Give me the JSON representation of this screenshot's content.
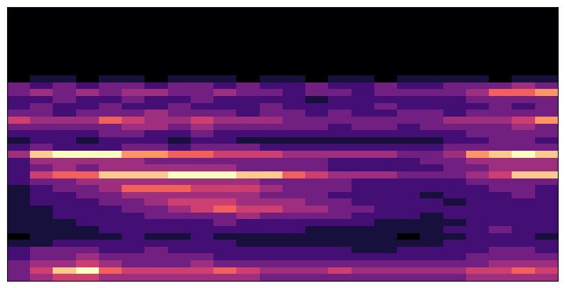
{
  "chart_data": {
    "type": "heatmap",
    "tick_labels": false,
    "color": "magma",
    "cells": [
      [
        0.0,
        0.0,
        0.0,
        0.0,
        0.0,
        0.0,
        0.0,
        0.0,
        0.0,
        0.0,
        0.0,
        0.0,
        0.0,
        0.0,
        0.0,
        0.0,
        0.0,
        0.0,
        0.0,
        0.0,
        0.0,
        0.0,
        0.0,
        0.0
      ],
      [
        0.0,
        0.0,
        0.0,
        0.0,
        0.0,
        0.0,
        0.0,
        0.0,
        0.0,
        0.0,
        0.0,
        0.0,
        0.0,
        0.0,
        0.0,
        0.0,
        0.0,
        0.0,
        0.0,
        0.0,
        0.0,
        0.0,
        0.0,
        0.0
      ],
      [
        0.0,
        0.0,
        0.0,
        0.0,
        0.0,
        0.0,
        0.0,
        0.0,
        0.0,
        0.0,
        0.0,
        0.0,
        0.0,
        0.0,
        0.0,
        0.0,
        0.0,
        0.0,
        0.0,
        0.0,
        0.0,
        0.0,
        0.0,
        0.0
      ],
      [
        0.0,
        0.0,
        0.0,
        0.0,
        0.0,
        0.0,
        0.0,
        0.0,
        0.0,
        0.0,
        0.0,
        0.0,
        0.0,
        0.0,
        0.0,
        0.0,
        0.0,
        0.0,
        0.0,
        0.0,
        0.0,
        0.0,
        0.0,
        0.0
      ],
      [
        0.0,
        0.0,
        0.0,
        0.0,
        0.0,
        0.0,
        0.0,
        0.0,
        0.0,
        0.0,
        0.0,
        0.0,
        0.0,
        0.0,
        0.0,
        0.0,
        0.0,
        0.0,
        0.0,
        0.0,
        0.0,
        0.0,
        0.0,
        0.0
      ],
      [
        0.0,
        0.0,
        0.0,
        0.0,
        0.0,
        0.0,
        0.0,
        0.0,
        0.0,
        0.0,
        0.0,
        0.0,
        0.0,
        0.0,
        0.0,
        0.0,
        0.0,
        0.0,
        0.0,
        0.0,
        0.0,
        0.0,
        0.0,
        0.0
      ],
      [
        0.0,
        0.0,
        0.0,
        0.0,
        0.0,
        0.0,
        0.0,
        0.0,
        0.0,
        0.0,
        0.0,
        0.0,
        0.0,
        0.0,
        0.0,
        0.0,
        0.0,
        0.0,
        0.0,
        0.0,
        0.0,
        0.0,
        0.0,
        0.0
      ],
      [
        0.0,
        0.0,
        0.0,
        0.0,
        0.0,
        0.0,
        0.0,
        0.0,
        0.0,
        0.0,
        0.0,
        0.0,
        0.0,
        0.0,
        0.0,
        0.0,
        0.0,
        0.0,
        0.0,
        0.0,
        0.0,
        0.0,
        0.0,
        0.0
      ],
      [
        0.0,
        0.0,
        0.0,
        0.0,
        0.0,
        0.0,
        0.0,
        0.0,
        0.0,
        0.0,
        0.0,
        0.0,
        0.0,
        0.0,
        0.0,
        0.0,
        0.0,
        0.0,
        0.0,
        0.0,
        0.0,
        0.0,
        0.0,
        0.0
      ],
      [
        0.0,
        0.0,
        0.0,
        0.0,
        0.0,
        0.0,
        0.0,
        0.0,
        0.0,
        0.0,
        0.0,
        0.0,
        0.0,
        0.0,
        0.0,
        0.0,
        0.0,
        0.0,
        0.0,
        0.0,
        0.0,
        0.0,
        0.0,
        0.0
      ],
      [
        0.0,
        0.1,
        0.1,
        0.0,
        0.1,
        0.1,
        0.0,
        0.1,
        0.1,
        0.1,
        0.0,
        0.1,
        0.1,
        0.0,
        0.1,
        0.1,
        0.0,
        0.1,
        0.1,
        0.1,
        0.1,
        0.0,
        0.1,
        0.1
      ],
      [
        0.3,
        0.2,
        0.3,
        0.2,
        0.3,
        0.3,
        0.2,
        0.3,
        0.3,
        0.2,
        0.3,
        0.2,
        0.2,
        0.3,
        0.2,
        0.2,
        0.3,
        0.2,
        0.2,
        0.3,
        0.3,
        0.3,
        0.4,
        0.3
      ],
      [
        0.3,
        0.4,
        0.3,
        0.4,
        0.3,
        0.4,
        0.4,
        0.3,
        0.3,
        0.4,
        0.3,
        0.3,
        0.2,
        0.3,
        0.3,
        0.2,
        0.3,
        0.3,
        0.3,
        0.3,
        0.4,
        0.6,
        0.6,
        0.7
      ],
      [
        0.2,
        0.2,
        0.3,
        0.2,
        0.2,
        0.3,
        0.2,
        0.2,
        0.3,
        0.2,
        0.2,
        0.2,
        0.2,
        0.1,
        0.2,
        0.2,
        0.2,
        0.2,
        0.2,
        0.2,
        0.3,
        0.3,
        0.3,
        0.3
      ],
      [
        0.2,
        0.3,
        0.2,
        0.2,
        0.3,
        0.2,
        0.2,
        0.3,
        0.2,
        0.2,
        0.2,
        0.3,
        0.2,
        0.2,
        0.2,
        0.2,
        0.3,
        0.2,
        0.2,
        0.2,
        0.2,
        0.3,
        0.2,
        0.3
      ],
      [
        0.3,
        0.3,
        0.2,
        0.3,
        0.3,
        0.3,
        0.4,
        0.3,
        0.3,
        0.3,
        0.2,
        0.3,
        0.3,
        0.2,
        0.3,
        0.2,
        0.2,
        0.3,
        0.3,
        0.2,
        0.3,
        0.3,
        0.3,
        0.3
      ],
      [
        0.5,
        0.4,
        0.4,
        0.4,
        0.6,
        0.5,
        0.4,
        0.4,
        0.5,
        0.4,
        0.4,
        0.4,
        0.3,
        0.3,
        0.3,
        0.3,
        0.3,
        0.3,
        0.3,
        0.4,
        0.4,
        0.4,
        0.5,
        0.7
      ],
      [
        0.3,
        0.3,
        0.3,
        0.3,
        0.3,
        0.4,
        0.4,
        0.3,
        0.4,
        0.3,
        0.3,
        0.3,
        0.3,
        0.3,
        0.2,
        0.3,
        0.3,
        0.2,
        0.3,
        0.3,
        0.3,
        0.3,
        0.4,
        0.3
      ],
      [
        0.2,
        0.2,
        0.2,
        0.2,
        0.3,
        0.3,
        0.2,
        0.2,
        0.3,
        0.2,
        0.2,
        0.2,
        0.2,
        0.2,
        0.2,
        0.2,
        0.2,
        0.2,
        0.2,
        0.2,
        0.3,
        0.3,
        0.3,
        0.3
      ],
      [
        0.1,
        0.2,
        0.2,
        0.1,
        0.2,
        0.2,
        0.2,
        0.1,
        0.2,
        0.2,
        0.1,
        0.1,
        0.1,
        0.1,
        0.1,
        0.1,
        0.1,
        0.1,
        0.1,
        0.2,
        0.2,
        0.3,
        0.3,
        0.2
      ],
      [
        0.2,
        0.3,
        0.2,
        0.2,
        0.2,
        0.3,
        0.3,
        0.2,
        0.3,
        0.3,
        0.3,
        0.2,
        0.2,
        0.2,
        0.2,
        0.2,
        0.2,
        0.2,
        0.2,
        0.3,
        0.3,
        0.3,
        0.3,
        0.3
      ],
      [
        0.4,
        0.8,
        0.9,
        0.9,
        0.9,
        0.7,
        0.7,
        0.6,
        0.6,
        0.5,
        0.5,
        0.5,
        0.4,
        0.4,
        0.4,
        0.4,
        0.4,
        0.3,
        0.3,
        0.4,
        0.7,
        0.8,
        0.9,
        0.8
      ],
      [
        0.2,
        0.4,
        0.4,
        0.4,
        0.4,
        0.4,
        0.3,
        0.3,
        0.3,
        0.3,
        0.3,
        0.3,
        0.3,
        0.3,
        0.2,
        0.2,
        0.2,
        0.2,
        0.3,
        0.3,
        0.4,
        0.4,
        0.4,
        0.4
      ],
      [
        0.2,
        0.3,
        0.4,
        0.3,
        0.4,
        0.4,
        0.4,
        0.4,
        0.4,
        0.4,
        0.3,
        0.3,
        0.3,
        0.3,
        0.2,
        0.2,
        0.2,
        0.2,
        0.2,
        0.3,
        0.3,
        0.4,
        0.4,
        0.4
      ],
      [
        0.2,
        0.5,
        0.6,
        0.6,
        0.8,
        0.8,
        0.8,
        0.9,
        0.9,
        0.9,
        0.8,
        0.8,
        0.6,
        0.5,
        0.4,
        0.4,
        0.4,
        0.3,
        0.3,
        0.3,
        0.4,
        0.5,
        0.8,
        0.8
      ],
      [
        0.2,
        0.3,
        0.3,
        0.4,
        0.4,
        0.4,
        0.4,
        0.4,
        0.4,
        0.4,
        0.4,
        0.3,
        0.3,
        0.3,
        0.3,
        0.2,
        0.2,
        0.2,
        0.2,
        0.2,
        0.3,
        0.3,
        0.3,
        0.3
      ],
      [
        0.1,
        0.2,
        0.3,
        0.3,
        0.4,
        0.6,
        0.6,
        0.6,
        0.5,
        0.5,
        0.5,
        0.4,
        0.3,
        0.3,
        0.3,
        0.2,
        0.2,
        0.2,
        0.2,
        0.2,
        0.2,
        0.3,
        0.3,
        0.2
      ],
      [
        0.1,
        0.2,
        0.2,
        0.3,
        0.3,
        0.4,
        0.4,
        0.4,
        0.4,
        0.4,
        0.4,
        0.3,
        0.3,
        0.3,
        0.2,
        0.2,
        0.2,
        0.2,
        0.1,
        0.2,
        0.2,
        0.2,
        0.3,
        0.2
      ],
      [
        0.1,
        0.2,
        0.2,
        0.2,
        0.3,
        0.3,
        0.4,
        0.5,
        0.5,
        0.5,
        0.4,
        0.4,
        0.4,
        0.3,
        0.3,
        0.2,
        0.2,
        0.2,
        0.2,
        0.1,
        0.2,
        0.2,
        0.2,
        0.2
      ],
      [
        0.1,
        0.1,
        0.2,
        0.2,
        0.2,
        0.3,
        0.3,
        0.4,
        0.5,
        0.6,
        0.5,
        0.5,
        0.4,
        0.4,
        0.3,
        0.3,
        0.2,
        0.2,
        0.2,
        0.2,
        0.2,
        0.2,
        0.2,
        0.2
      ],
      [
        0.1,
        0.1,
        0.2,
        0.2,
        0.2,
        0.2,
        0.3,
        0.3,
        0.3,
        0.3,
        0.4,
        0.3,
        0.3,
        0.3,
        0.3,
        0.2,
        0.2,
        0.2,
        0.1,
        0.2,
        0.2,
        0.2,
        0.2,
        0.2
      ],
      [
        0.1,
        0.1,
        0.1,
        0.2,
        0.2,
        0.2,
        0.2,
        0.2,
        0.2,
        0.3,
        0.2,
        0.2,
        0.2,
        0.2,
        0.2,
        0.2,
        0.1,
        0.1,
        0.1,
        0.1,
        0.2,
        0.2,
        0.2,
        0.2
      ],
      [
        0.1,
        0.1,
        0.1,
        0.1,
        0.2,
        0.2,
        0.2,
        0.2,
        0.2,
        0.2,
        0.2,
        0.2,
        0.2,
        0.1,
        0.1,
        0.1,
        0.1,
        0.1,
        0.1,
        0.2,
        0.2,
        0.3,
        0.2,
        0.2
      ],
      [
        0.0,
        0.1,
        0.1,
        0.1,
        0.1,
        0.2,
        0.1,
        0.1,
        0.2,
        0.1,
        0.1,
        0.1,
        0.1,
        0.1,
        0.1,
        0.1,
        0.1,
        0.0,
        0.1,
        0.1,
        0.2,
        0.2,
        0.2,
        0.1
      ],
      [
        0.1,
        0.1,
        0.2,
        0.2,
        0.2,
        0.2,
        0.2,
        0.2,
        0.2,
        0.2,
        0.1,
        0.1,
        0.1,
        0.1,
        0.1,
        0.1,
        0.1,
        0.1,
        0.1,
        0.2,
        0.2,
        0.2,
        0.2,
        0.2
      ],
      [
        0.2,
        0.3,
        0.3,
        0.3,
        0.2,
        0.2,
        0.3,
        0.2,
        0.2,
        0.2,
        0.2,
        0.2,
        0.2,
        0.2,
        0.2,
        0.1,
        0.1,
        0.2,
        0.2,
        0.2,
        0.2,
        0.3,
        0.3,
        0.2
      ],
      [
        0.2,
        0.3,
        0.3,
        0.4,
        0.3,
        0.3,
        0.3,
        0.3,
        0.3,
        0.2,
        0.2,
        0.2,
        0.2,
        0.2,
        0.2,
        0.2,
        0.2,
        0.2,
        0.2,
        0.2,
        0.3,
        0.3,
        0.3,
        0.3
      ],
      [
        0.3,
        0.4,
        0.4,
        0.5,
        0.4,
        0.3,
        0.3,
        0.3,
        0.4,
        0.3,
        0.3,
        0.3,
        0.3,
        0.3,
        0.3,
        0.3,
        0.3,
        0.3,
        0.3,
        0.3,
        0.3,
        0.4,
        0.4,
        0.4
      ],
      [
        0.3,
        0.5,
        0.8,
        0.9,
        0.6,
        0.5,
        0.5,
        0.5,
        0.5,
        0.6,
        0.5,
        0.4,
        0.4,
        0.4,
        0.5,
        0.4,
        0.4,
        0.4,
        0.4,
        0.4,
        0.5,
        0.5,
        0.6,
        0.5
      ],
      [
        0.3,
        0.4,
        0.5,
        0.5,
        0.4,
        0.4,
        0.4,
        0.4,
        0.4,
        0.4,
        0.4,
        0.3,
        0.3,
        0.3,
        0.3,
        0.3,
        0.3,
        0.3,
        0.3,
        0.3,
        0.4,
        0.4,
        0.4,
        0.4
      ]
    ]
  }
}
